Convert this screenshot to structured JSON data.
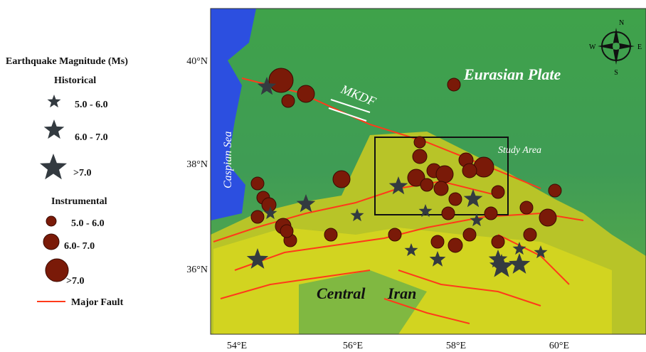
{
  "legend": {
    "title": "Earthquake Magnitude (Ms)",
    "historical": {
      "title": "Historical",
      "items": [
        "5.0 - 6.0",
        "6.0 - 7.0",
        ">7.0"
      ]
    },
    "instrumental": {
      "title": "Instrumental",
      "items": [
        "5.0 - 6.0",
        "6.0- 7.0",
        ">7.0"
      ]
    },
    "fault": "Major Fault"
  },
  "map": {
    "lat_labels": [
      "40°N",
      "38°N",
      "36°N"
    ],
    "lon_labels": [
      "54°E",
      "56°E",
      "58°E",
      "60°E"
    ],
    "labels": {
      "plate": "Eurasian Plate",
      "fault": "MKDF",
      "study_area": "Study Area",
      "sea": "Caspian Sea",
      "region": [
        "Central",
        "Iran"
      ]
    },
    "compass": [
      "N",
      "S",
      "W",
      "E"
    ]
  }
}
